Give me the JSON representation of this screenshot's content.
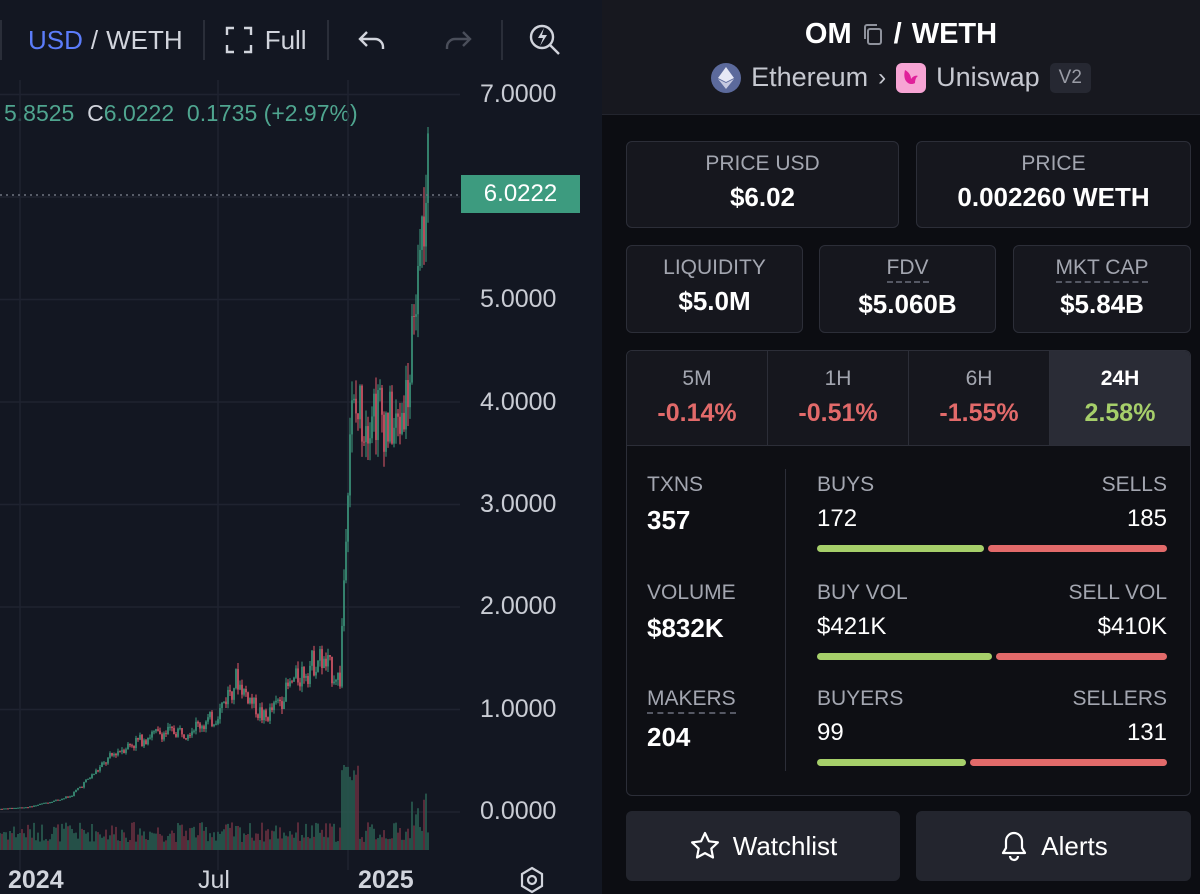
{
  "toolbar": {
    "quote_usd": "USD",
    "quote_weth": "WETH",
    "fullscreen_label": "Full"
  },
  "ohlc": {
    "low_partial": "5.8525",
    "close_label": "C",
    "close": "6.0222",
    "change": "0.1735",
    "change_pct": "(+2.97%)"
  },
  "chart": {
    "last_price": "6.0222",
    "y_ticks": [
      "7.0000",
      "5.0000",
      "4.0000",
      "3.0000",
      "2.0000",
      "1.0000",
      "0.0000"
    ],
    "x_ticks": [
      "2024",
      "Jul",
      "2025"
    ]
  },
  "chart_data": {
    "type": "line",
    "x": [
      "2023-12",
      "2024-01",
      "2024-02",
      "2024-03",
      "2024-04",
      "2024-05",
      "2024-06",
      "2024-07",
      "2024-08",
      "2024-09",
      "2024-10",
      "2024-11",
      "2024-11-15",
      "2024-12",
      "2024-12-20",
      "2025-01",
      "2025-01-15",
      "2025-02"
    ],
    "values": [
      0.03,
      0.05,
      0.15,
      0.6,
      0.75,
      0.8,
      0.9,
      1.3,
      0.9,
      1.3,
      1.5,
      1.3,
      3.8,
      4.0,
      3.7,
      4.2,
      5.2,
      6.0222
    ],
    "ylim": [
      0,
      7
    ],
    "y_ticks": [
      "7.0000",
      "5.0000",
      "4.0000",
      "3.0000",
      "2.0000",
      "1.0000",
      "0.0000"
    ],
    "x_ticks": [
      "2024",
      "Jul",
      "2025"
    ],
    "grid": true
  },
  "pair": {
    "base": "OM",
    "quote": "WETH",
    "chain": "Ethereum",
    "dex": "Uniswap",
    "version": "V2"
  },
  "price": {
    "usd_label": "PRICE USD",
    "usd_value": "$6.02",
    "native_label": "PRICE",
    "native_value": "0.002260 WETH"
  },
  "metrics": {
    "liquidity_label": "LIQUIDITY",
    "liquidity_value": "$5.0M",
    "fdv_label": "FDV",
    "fdv_value": "$5.060B",
    "mcap_label": "MKT CAP",
    "mcap_value": "$5.84B"
  },
  "timeframes": [
    {
      "label": "5M",
      "value": "-0.14%"
    },
    {
      "label": "1H",
      "value": "-0.51%"
    },
    {
      "label": "6H",
      "value": "-1.55%"
    },
    {
      "label": "24H",
      "value": "2.58%"
    }
  ],
  "stats": {
    "txns_label": "TXNS",
    "txns_value": "357",
    "volume_label": "VOLUME",
    "volume_value": "$832K",
    "makers_label": "MAKERS",
    "makers_value": "204",
    "buys_label": "BUYS",
    "buys_value": "172",
    "sells_label": "SELLS",
    "sells_value": "185",
    "buys_fraction": 0.482,
    "buy_vol_label": "BUY VOL",
    "buy_vol_value": "$421K",
    "sell_vol_label": "SELL VOL",
    "sell_vol_value": "$410K",
    "buy_vol_fraction": 0.507,
    "buyers_label": "BUYERS",
    "buyers_value": "99",
    "sellers_label": "SELLERS",
    "sellers_value": "131",
    "buyers_fraction": 0.43
  },
  "actions": {
    "watchlist_label": "Watchlist",
    "alerts_label": "Alerts"
  },
  "colors": {
    "accent_blue": "#5b7cfa",
    "up_green": "#3d9b7f",
    "positive": "#a6cf6a",
    "negative": "#e26a6a"
  }
}
